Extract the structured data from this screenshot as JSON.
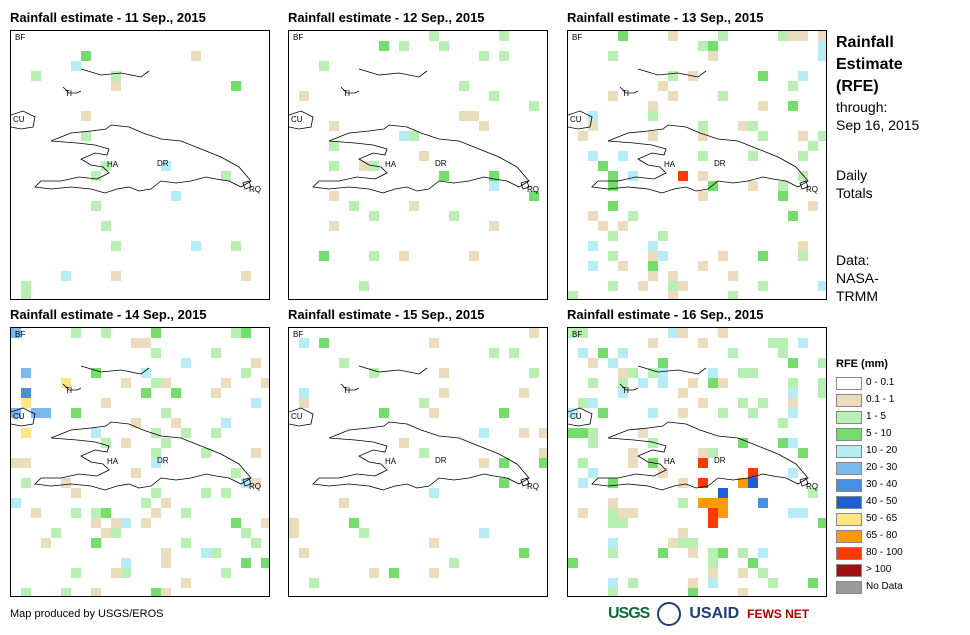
{
  "panels": [
    {
      "title": "Rainfall estimate - 11 Sep., 2015",
      "key": "p11"
    },
    {
      "title": "Rainfall estimate - 12 Sep., 2015",
      "key": "p12"
    },
    {
      "title": "Rainfall estimate - 13 Sep., 2015",
      "key": "p13"
    },
    {
      "title": "Rainfall estimate - 14 Sep., 2015",
      "key": "p14"
    },
    {
      "title": "Rainfall estimate - 15 Sep., 2015",
      "key": "p15"
    },
    {
      "title": "Rainfall estimate - 16 Sep., 2015",
      "key": "p16"
    }
  ],
  "map_labels": {
    "bf": "BF",
    "ti": "TI",
    "cu": "CU",
    "ha": "HA",
    "dr": "DR",
    "rq": "RQ"
  },
  "side": {
    "title1": "Rainfall",
    "title2": "Estimate",
    "title3": "(RFE)",
    "through": "through:",
    "date": "Sep 16, 2015",
    "daily1": "Daily",
    "daily2": "Totals",
    "data1": "Data:",
    "data2": "NASA-",
    "data3": "TRMM"
  },
  "legend": {
    "title": "RFE (mm)",
    "items": [
      {
        "label": "0 - 0.1",
        "color": "#ffffff"
      },
      {
        "label": "0.1 - 1",
        "color": "#ecdcbe"
      },
      {
        "label": "1 - 5",
        "color": "#b8f0b3"
      },
      {
        "label": "5 - 10",
        "color": "#74dd6e"
      },
      {
        "label": "10 - 20",
        "color": "#b6ecf5"
      },
      {
        "label": "20 - 30",
        "color": "#7db8ec"
      },
      {
        "label": "30 - 40",
        "color": "#4a8ee0"
      },
      {
        "label": "40 - 50",
        "color": "#1f5fd6"
      },
      {
        "label": "50 - 65",
        "color": "#ffe680"
      },
      {
        "label": "65 - 80",
        "color": "#ff9a00"
      },
      {
        "label": "80 - 100",
        "color": "#ff3a00"
      },
      {
        "label": "> 100",
        "color": "#a01010"
      },
      {
        "label": "No Data",
        "color": "#9a9a9a"
      }
    ]
  },
  "footer": "Map produced by USGS/EROS",
  "logos": {
    "usgs": "USGS",
    "usaid": "USAID",
    "fews": "FEWS NET"
  }
}
